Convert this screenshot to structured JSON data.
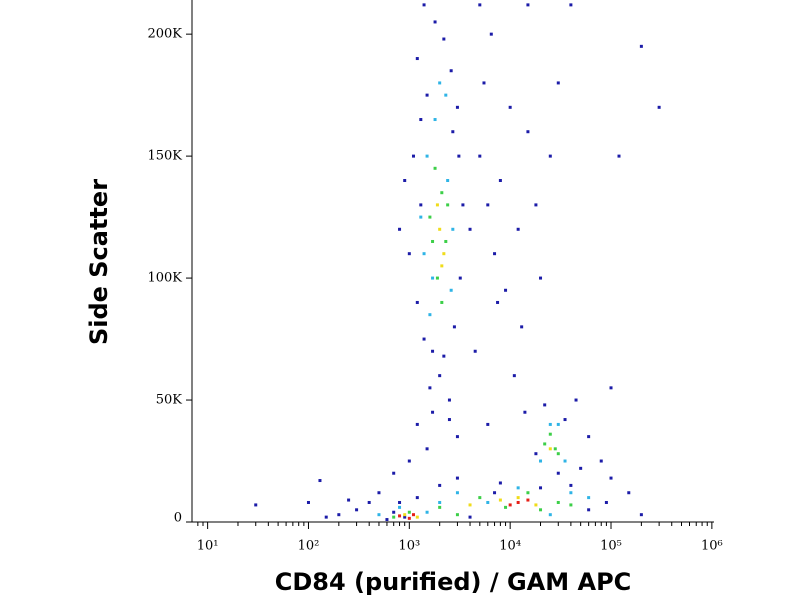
{
  "chart_data": {
    "type": "scatter",
    "x_label": "CD84 (purified) / GAM APC",
    "y_label": "Side Scatter",
    "x_scale": "log",
    "xlim": [
      7,
      1050000
    ],
    "ylim": [
      0,
      214000
    ],
    "xticks": [
      {
        "value": 10,
        "label": "10¹"
      },
      {
        "value": 100,
        "label": "10²"
      },
      {
        "value": 1000,
        "label": "10³"
      },
      {
        "value": 10000,
        "label": "10⁴"
      },
      {
        "value": 100000,
        "label": "10⁵"
      },
      {
        "value": 1000000,
        "label": "10⁶"
      }
    ],
    "yticks": [
      0,
      {
        "value": 50000,
        "label": "50K"
      },
      {
        "value": 100000,
        "label": "100K"
      },
      {
        "value": 150000,
        "label": "150K"
      },
      {
        "value": 200000,
        "label": "200K"
      }
    ],
    "series": [
      {
        "color": "#1c1ca8",
        "x": [
          1200,
          1500,
          1800,
          2200,
          2600,
          3000,
          1100,
          1300,
          1000,
          1200,
          1400,
          1700,
          2200,
          2800,
          3200,
          3400,
          3100,
          2000,
          1600,
          2500,
          900,
          800,
          1300,
          2700,
          5000,
          6000,
          7000,
          8000,
          9000,
          12000,
          15000,
          20000,
          5500,
          6500,
          7500,
          10000,
          13000,
          18000,
          25000,
          30000,
          4000,
          4500,
          11000,
          14000,
          6000,
          3000,
          1500,
          1000,
          700,
          500,
          400,
          300,
          200,
          150,
          250,
          600,
          100000,
          150000,
          200000,
          80000,
          60000,
          45000,
          100000,
          120000,
          300000,
          200000,
          5000,
          15000,
          40000,
          1400,
          60000,
          90000,
          40000,
          3000,
          8000,
          20000,
          2000,
          1200,
          800,
          30000,
          35000,
          18000,
          22000,
          50000,
          900,
          700,
          4000,
          7000,
          100,
          130,
          30,
          1200,
          1700,
          2500
        ],
        "y": [
          190000,
          175000,
          205000,
          198000,
          185000,
          170000,
          150000,
          130000,
          110000,
          90000,
          75000,
          70000,
          68000,
          80000,
          100000,
          130000,
          150000,
          60000,
          55000,
          50000,
          140000,
          120000,
          165000,
          160000,
          150000,
          130000,
          110000,
          140000,
          95000,
          120000,
          160000,
          100000,
          180000,
          200000,
          90000,
          170000,
          80000,
          130000,
          150000,
          180000,
          120000,
          70000,
          60000,
          45000,
          40000,
          35000,
          30000,
          25000,
          20000,
          12000,
          8000,
          5000,
          3000,
          2000,
          9000,
          1000,
          18000,
          12000,
          3000,
          25000,
          35000,
          50000,
          55000,
          150000,
          170000,
          195000,
          212000,
          212000,
          212000,
          212000,
          5000,
          8000,
          15000,
          18000,
          16000,
          14000,
          15000,
          10000,
          8000,
          20000,
          42000,
          28000,
          48000,
          22000,
          2000,
          4000,
          2000,
          12000,
          8000,
          17000,
          7000,
          40000,
          45000,
          42000
        ]
      },
      {
        "color": "#2fb4e6",
        "x": [
          1500,
          1800,
          2300,
          1400,
          2600,
          1600,
          2400,
          2000,
          1700,
          2700,
          1300,
          25000,
          20000,
          35000,
          30000,
          3000,
          6000,
          12000,
          40000,
          800,
          500,
          1500,
          25000,
          60000,
          2000
        ],
        "y": [
          150000,
          165000,
          175000,
          110000,
          95000,
          85000,
          140000,
          180000,
          100000,
          120000,
          125000,
          40000,
          25000,
          25000,
          40000,
          12000,
          8000,
          14000,
          12000,
          6000,
          3000,
          4000,
          3000,
          10000,
          8000
        ]
      },
      {
        "color": "#3ccf48",
        "x": [
          1800,
          2100,
          1600,
          2300,
          1900,
          2100,
          1700,
          2400,
          22000,
          28000,
          25000,
          30000,
          2000,
          5000,
          9000,
          15000,
          30000,
          1000,
          700,
          20000,
          40000,
          3000
        ],
        "y": [
          145000,
          135000,
          125000,
          115000,
          100000,
          90000,
          115000,
          130000,
          32000,
          30000,
          36000,
          28000,
          6000,
          10000,
          6000,
          12000,
          8000,
          4000,
          2000,
          5000,
          7000,
          3000
        ]
      },
      {
        "color": "#f0dc1a",
        "x": [
          2000,
          2200,
          1900,
          2100,
          25000,
          8000,
          12000,
          900,
          4000,
          18000,
          1200
        ],
        "y": [
          120000,
          110000,
          130000,
          105000,
          30000,
          9000,
          10000,
          3000,
          7000,
          7000,
          2000
        ]
      },
      {
        "color": "#e62018",
        "x": [
          1000,
          800,
          12000,
          15000,
          10000,
          1100
        ],
        "y": [
          1500,
          2500,
          8000,
          9000,
          7000,
          3000
        ]
      }
    ]
  }
}
